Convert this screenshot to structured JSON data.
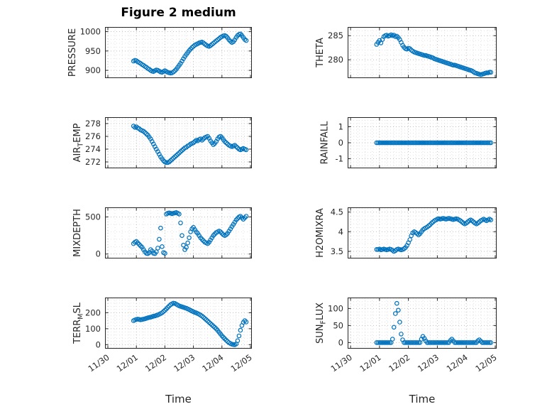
{
  "colors": {
    "marker": "#0072BD",
    "axis": "#262626",
    "grid_major": "#bdbdbd",
    "grid_minor": "#e2e2e2"
  },
  "chart_data": {
    "type": "scatter",
    "title": "Figure 2 medium",
    "xlabel": "Time",
    "marker": "o",
    "grid": "dotted major and minor, both axes",
    "x_ticks": [
      0,
      1,
      2,
      3,
      4,
      5
    ],
    "x_tick_labels": [
      "11/30",
      "12/01",
      "12/02",
      "12/03",
      "12/04",
      "12/05"
    ],
    "xlim": [
      -0.1,
      5.05
    ],
    "x": [
      0.9,
      0.95,
      1,
      1.05,
      1.1,
      1.15,
      1.2,
      1.25,
      1.3,
      1.35,
      1.4,
      1.45,
      1.5,
      1.55,
      1.6,
      1.65,
      1.7,
      1.75,
      1.8,
      1.85,
      1.9,
      1.95,
      2,
      2.05,
      2.1,
      2.15,
      2.2,
      2.25,
      2.3,
      2.35,
      2.4,
      2.45,
      2.5,
      2.55,
      2.6,
      2.65,
      2.7,
      2.75,
      2.8,
      2.85,
      2.9,
      2.95,
      3,
      3.05,
      3.1,
      3.15,
      3.2,
      3.25,
      3.3,
      3.35,
      3.4,
      3.45,
      3.5,
      3.55,
      3.6,
      3.65,
      3.7,
      3.75,
      3.8,
      3.85,
      3.9,
      3.95,
      4,
      4.05,
      4.1,
      4.15,
      4.2,
      4.25,
      4.3,
      4.35,
      4.4,
      4.45,
      4.5,
      4.55,
      4.6,
      4.65,
      4.7,
      4.75,
      4.8,
      4.85
    ],
    "subplots": [
      {
        "id": "pressure",
        "row": 0,
        "col": 0,
        "ylabel": "PRESSURE",
        "ylabel_parts": [
          {
            "t": "PRESSURE"
          }
        ],
        "yticks": [
          900,
          950,
          1000
        ],
        "ytick_labels": [
          "900",
          "950",
          "1000"
        ],
        "ylim": [
          880,
          1012
        ],
        "values": [
          924,
          926,
          925,
          922,
          920,
          918,
          915,
          913,
          910,
          908,
          905,
          903,
          900,
          898,
          897,
          899,
          901,
          900,
          898,
          896,
          895,
          897,
          899,
          897,
          895,
          894,
          893,
          894,
          896,
          899,
          903,
          908,
          913,
          918,
          924,
          930,
          936,
          941,
          946,
          951,
          955,
          959,
          962,
          965,
          967,
          969,
          971,
          972,
          973,
          971,
          968,
          965,
          963,
          962,
          964,
          967,
          970,
          973,
          976,
          979,
          982,
          985,
          987,
          989,
          990,
          988,
          984,
          979,
          975,
          972,
          974,
          979,
          985,
          990,
          993,
          994,
          990,
          985,
          980,
          977
        ]
      },
      {
        "id": "theta",
        "row": 0,
        "col": 1,
        "ylabel": "THETA",
        "ylabel_parts": [
          {
            "t": "THETA"
          }
        ],
        "yticks": [
          280,
          285
        ],
        "ytick_labels": [
          "280",
          "285"
        ],
        "ylim": [
          276.2,
          286.8
        ],
        "values": [
          283.2,
          283.6,
          284,
          283.5,
          284.2,
          284.8,
          285,
          285.1,
          284.9,
          285,
          285.2,
          285,
          285.1,
          284.8,
          284.9,
          284.6,
          284.2,
          283.6,
          283,
          282.6,
          282.3,
          282.2,
          282.4,
          282.3,
          282,
          281.8,
          281.6,
          281.5,
          281.4,
          281.3,
          281.2,
          281.1,
          281,
          280.9,
          280.9,
          280.8,
          280.7,
          280.6,
          280.5,
          280.4,
          280.2,
          280.1,
          280,
          279.9,
          279.8,
          279.7,
          279.6,
          279.5,
          279.4,
          279.3,
          279.2,
          279.1,
          279,
          278.9,
          278.9,
          278.8,
          278.7,
          278.6,
          278.5,
          278.4,
          278.3,
          278.2,
          278.1,
          278,
          277.9,
          277.8,
          277.7,
          277.5,
          277.3,
          277.2,
          277.1,
          277,
          276.9,
          277,
          277.1,
          277.2,
          277.3,
          277.3,
          277.4,
          277.4
        ]
      },
      {
        "id": "air-temp",
        "row": 1,
        "col": 0,
        "ylabel": "AIR_TEMP",
        "ylabel_parts": [
          {
            "t": "AIR"
          },
          {
            "t": "T",
            "sub": true
          },
          {
            "t": "EMP"
          }
        ],
        "yticks": [
          272,
          274,
          276,
          278
        ],
        "ytick_labels": [
          "272",
          "274",
          "276",
          "278"
        ],
        "ylim": [
          271,
          279
        ],
        "values": [
          277.6,
          277.4,
          277.5,
          277.3,
          277.2,
          277,
          276.9,
          276.8,
          276.6,
          276.4,
          276.2,
          275.9,
          275.6,
          275.2,
          274.8,
          274.4,
          274,
          273.6,
          273.2,
          272.8,
          272.5,
          272.2,
          272,
          271.9,
          271.9,
          272,
          272.2,
          272.4,
          272.6,
          272.8,
          273,
          273.2,
          273.4,
          273.6,
          273.8,
          274,
          274.2,
          274.3,
          274.5,
          274.6,
          274.8,
          274.9,
          275,
          275.2,
          275.4,
          275.3,
          275.5,
          275.6,
          275.4,
          275.6,
          275.8,
          275.9,
          276,
          275.7,
          275.3,
          275,
          274.7,
          274.9,
          275.2,
          275.6,
          275.9,
          276,
          275.8,
          275.5,
          275.2,
          275,
          274.8,
          274.6,
          274.5,
          274.4,
          274.5,
          274.6,
          274.4,
          274.2,
          274,
          273.9,
          274,
          274.1,
          274,
          273.9
        ]
      },
      {
        "id": "rainfall",
        "row": 1,
        "col": 1,
        "ylabel": "RAINFALL",
        "ylabel_parts": [
          {
            "t": "RAINFALL"
          }
        ],
        "yticks": [
          -1,
          0,
          1
        ],
        "ytick_labels": [
          "-1",
          "0",
          "1"
        ],
        "ylim": [
          -1.6,
          1.6
        ],
        "values": [
          0,
          0,
          0,
          0,
          0,
          0,
          0,
          0,
          0,
          0,
          0,
          0,
          0,
          0,
          0,
          0,
          0,
          0,
          0,
          0,
          0,
          0,
          0,
          0,
          0,
          0,
          0,
          0,
          0,
          0,
          0,
          0,
          0,
          0,
          0,
          0,
          0,
          0,
          0,
          0,
          0,
          0,
          0,
          0,
          0,
          0,
          0,
          0,
          0,
          0,
          0,
          0,
          0,
          0,
          0,
          0,
          0,
          0,
          0,
          0,
          0,
          0,
          0,
          0,
          0,
          0,
          0,
          0,
          0,
          0,
          0,
          0,
          0,
          0,
          0,
          0,
          0,
          0,
          0,
          0
        ]
      },
      {
        "id": "mixdepth",
        "row": 2,
        "col": 0,
        "ylabel": "MIXDEPTH",
        "ylabel_parts": [
          {
            "t": "MIXDEPTH"
          }
        ],
        "yticks": [
          0,
          500
        ],
        "ytick_labels": [
          "0",
          "500"
        ],
        "ylim": [
          -60,
          630
        ],
        "values": [
          140,
          160,
          170,
          150,
          130,
          110,
          90,
          60,
          30,
          10,
          5,
          20,
          60,
          40,
          10,
          5,
          30,
          80,
          200,
          350,
          100,
          20,
          10,
          540,
          550,
          555,
          550,
          545,
          550,
          555,
          560,
          550,
          540,
          420,
          250,
          120,
          60,
          90,
          150,
          220,
          300,
          340,
          360,
          330,
          300,
          280,
          250,
          220,
          200,
          180,
          160,
          150,
          140,
          160,
          190,
          220,
          250,
          270,
          290,
          300,
          310,
          300,
          280,
          260,
          250,
          260,
          280,
          310,
          340,
          370,
          400,
          430,
          460,
          480,
          500,
          510,
          490,
          470,
          490,
          510
        ]
      },
      {
        "id": "h2omixra",
        "row": 2,
        "col": 1,
        "ylabel": "H2OMIXRA",
        "ylabel_parts": [
          {
            "t": "H2OMIXRA"
          }
        ],
        "yticks": [
          3.5,
          4,
          4.5
        ],
        "ytick_labels": [
          "3.5",
          "4",
          "4.5"
        ],
        "ylim": [
          3.32,
          4.62
        ],
        "values": [
          3.55,
          3.55,
          3.56,
          3.54,
          3.55,
          3.56,
          3.55,
          3.54,
          3.55,
          3.56,
          3.55,
          3.53,
          3.5,
          3.52,
          3.55,
          3.56,
          3.55,
          3.54,
          3.55,
          3.57,
          3.6,
          3.65,
          3.72,
          3.8,
          3.9,
          3.97,
          4,
          3.98,
          3.95,
          3.92,
          3.95,
          4,
          4.05,
          4.08,
          4.1,
          4.12,
          4.15,
          4.18,
          4.22,
          4.25,
          4.28,
          4.3,
          4.32,
          4.33,
          4.32,
          4.33,
          4.34,
          4.33,
          4.32,
          4.33,
          4.34,
          4.33,
          4.32,
          4.31,
          4.32,
          4.33,
          4.32,
          4.3,
          4.28,
          4.25,
          4.22,
          4.2,
          4.22,
          4.25,
          4.28,
          4.3,
          4.28,
          4.25,
          4.22,
          4.2,
          4.22,
          4.25,
          4.28,
          4.3,
          4.32,
          4.3,
          4.28,
          4.3,
          4.32,
          4.3
        ]
      },
      {
        "id": "terr-msl",
        "row": 3,
        "col": 0,
        "ylabel": "TERR_MSL",
        "ylabel_parts": [
          {
            "t": "TERR"
          },
          {
            "t": "M",
            "sub": true
          },
          {
            "t": "SL"
          }
        ],
        "yticks": [
          0,
          100,
          200
        ],
        "ytick_labels": [
          "0",
          "100",
          "200"
        ],
        "ylim": [
          -25,
          295
        ],
        "values": [
          150,
          155,
          158,
          160,
          158,
          156,
          158,
          160,
          162,
          165,
          168,
          170,
          172,
          175,
          178,
          180,
          183,
          186,
          190,
          195,
          200,
          207,
          215,
          224,
          233,
          242,
          250,
          256,
          260,
          258,
          253,
          248,
          243,
          240,
          237,
          234,
          231,
          228,
          224,
          220,
          215,
          210,
          206,
          202,
          199,
          195,
          190,
          185,
          179,
          172,
          164,
          156,
          148,
          140,
          132,
          124,
          116,
          108,
          99,
          89,
          78,
          67,
          56,
          46,
          37,
          28,
          20,
          13,
          7,
          3,
          1,
          0,
          5,
          25,
          55,
          90,
          120,
          140,
          150,
          142
        ]
      },
      {
        "id": "sun-flux",
        "row": 3,
        "col": 1,
        "ylabel": "SUN_FLUX",
        "ylabel_parts": [
          {
            "t": "SUN"
          },
          {
            "t": "F",
            "sub": true
          },
          {
            "t": "LUX"
          }
        ],
        "yticks": [
          0,
          50,
          100
        ],
        "ytick_labels": [
          "0",
          "50",
          "100"
        ],
        "ylim": [
          -18,
          132
        ],
        "values": [
          0,
          0,
          0,
          0,
          0,
          0,
          0,
          0,
          0,
          0,
          0,
          10,
          45,
          85,
          115,
          95,
          60,
          25,
          8,
          0,
          0,
          0,
          0,
          0,
          0,
          0,
          0,
          0,
          0,
          0,
          0,
          10,
          18,
          12,
          5,
          0,
          0,
          0,
          0,
          0,
          0,
          0,
          0,
          0,
          0,
          0,
          0,
          0,
          0,
          0,
          0,
          6,
          10,
          5,
          0,
          0,
          0,
          0,
          0,
          0,
          0,
          0,
          0,
          0,
          0,
          0,
          0,
          0,
          0,
          0,
          5,
          8,
          4,
          0,
          0,
          0,
          0,
          0,
          0,
          0
        ]
      }
    ]
  }
}
